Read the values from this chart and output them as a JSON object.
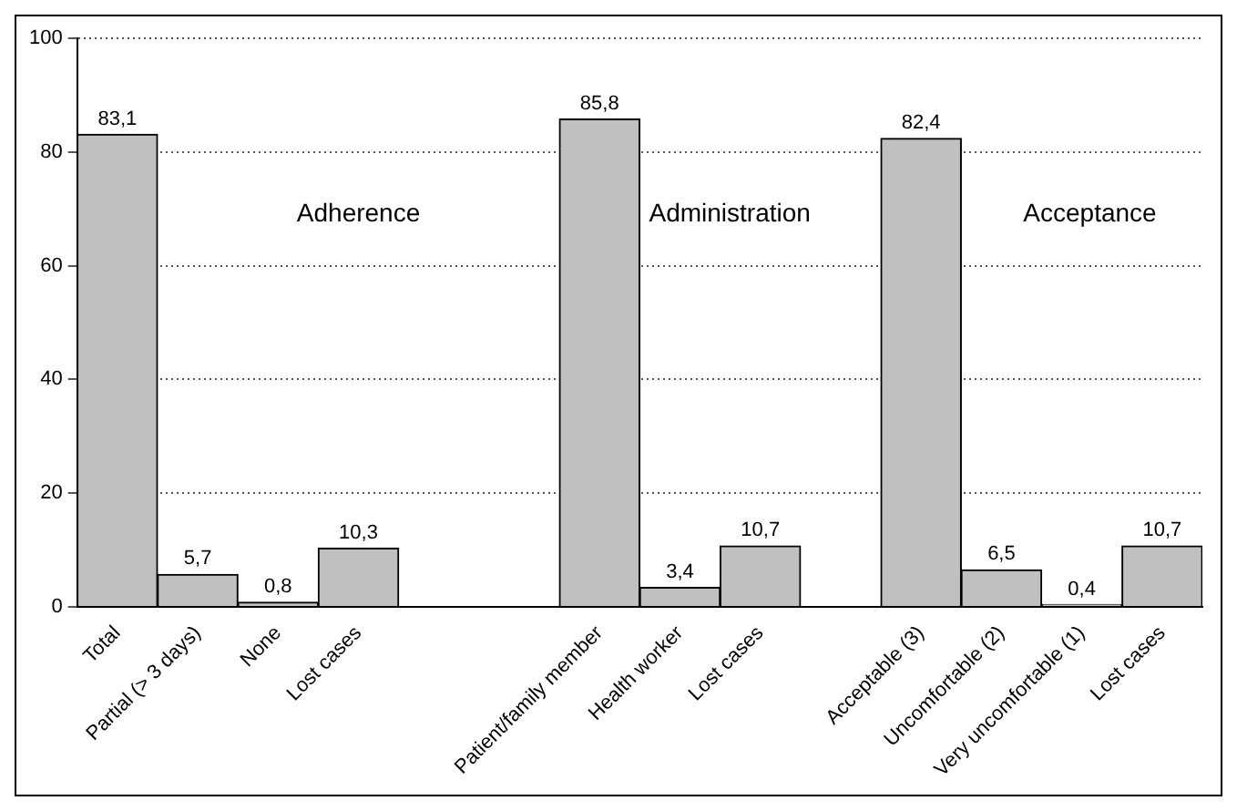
{
  "chart_data": {
    "type": "bar",
    "categories": [
      "Total",
      "Partial (> 3 days)",
      "None",
      "Lost cases",
      null,
      null,
      "Patient/family member",
      "Health worker",
      "Lost cases",
      null,
      "Acceptable (3)",
      "Uncomfortable (2)",
      "Very uncomfortable (1)",
      "Lost cases"
    ],
    "values": [
      83.1,
      5.7,
      0.8,
      10.3,
      null,
      null,
      85.8,
      3.4,
      10.7,
      null,
      82.4,
      6.5,
      0.4,
      10.7
    ],
    "value_labels": [
      "83,1",
      "5,7",
      "0,8",
      "10,3",
      null,
      null,
      "85,8",
      "3,4",
      "10,7",
      null,
      "82,4",
      "6,5",
      "0,4",
      "10,7"
    ],
    "color": "#c0c0c0",
    "ylim": [
      0,
      100
    ],
    "yticks": [
      0,
      20,
      40,
      60,
      80,
      100
    ],
    "grid": "y",
    "legend": false,
    "annotations": [
      "Adherence",
      "Administration",
      "Acceptance"
    ]
  }
}
